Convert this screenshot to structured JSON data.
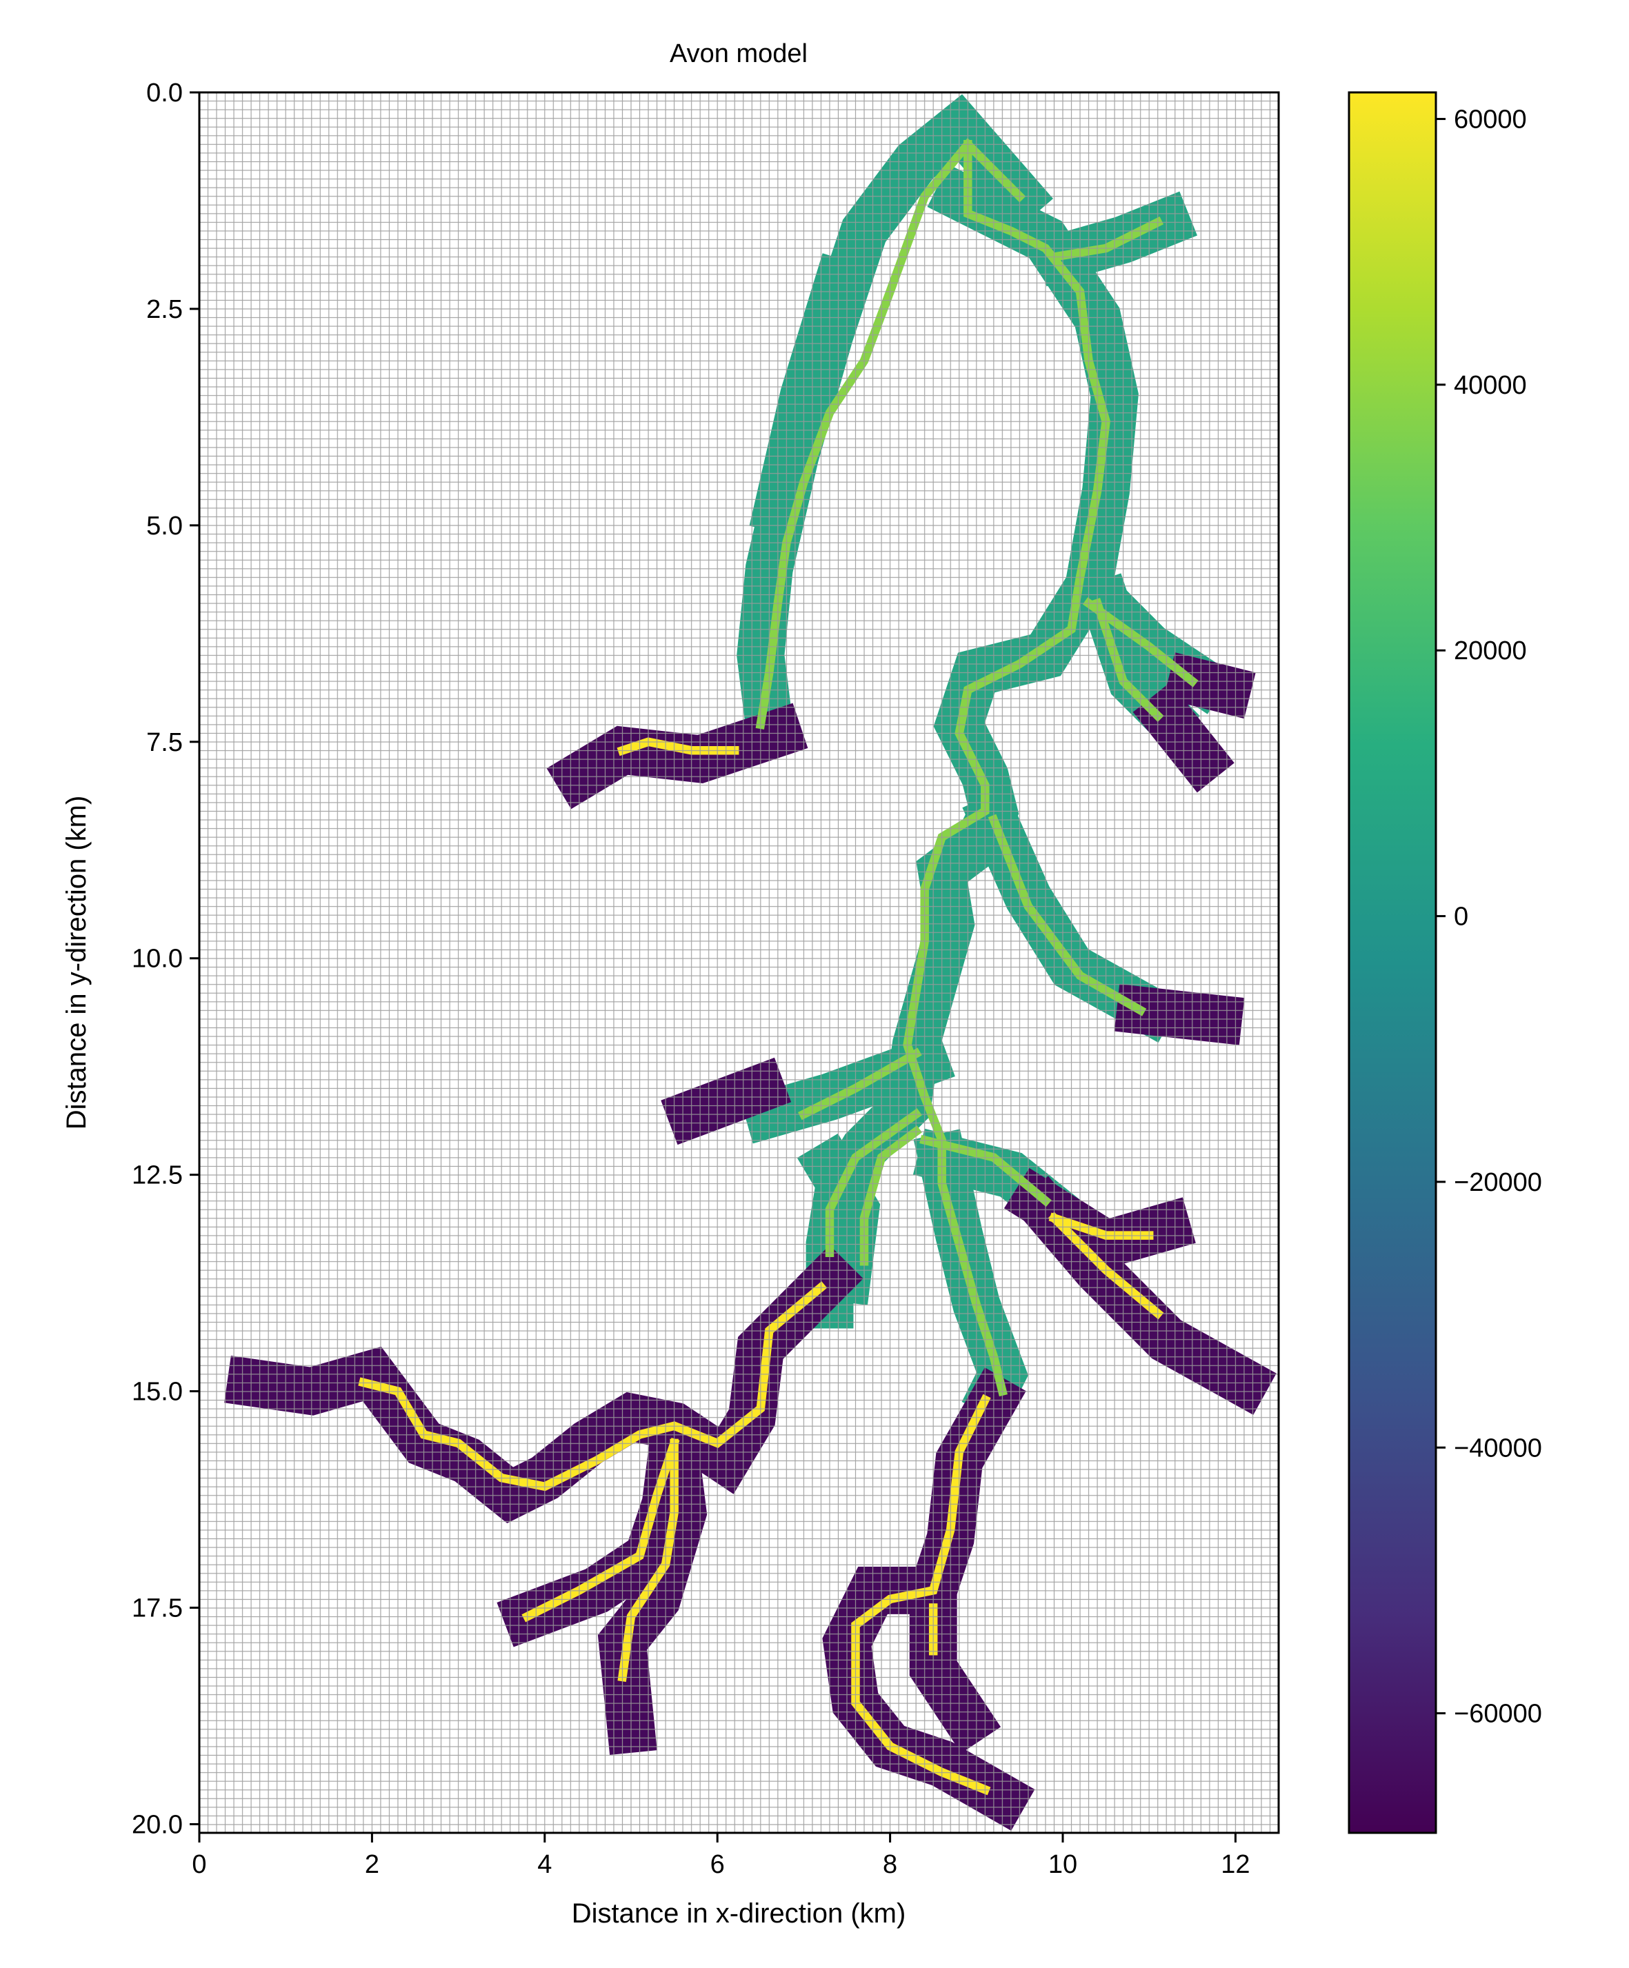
{
  "chart_data": {
    "type": "heatmap",
    "title": "Avon model",
    "xlabel": "Distance in x-direction (km)",
    "ylabel": "Distance in y-direction (km)",
    "xlim": [
      0,
      12.5
    ],
    "ylim": [
      20.1,
      0
    ],
    "x_ticks": [
      0,
      2,
      4,
      6,
      8,
      10,
      12
    ],
    "x_tick_labels": [
      "0",
      "2",
      "4",
      "6",
      "8",
      "10",
      "12"
    ],
    "y_ticks": [
      0,
      2.5,
      5,
      7.5,
      10,
      12.5,
      15,
      17.5,
      20
    ],
    "y_tick_labels": [
      "0.0",
      "2.5",
      "5.0",
      "7.5",
      "10.0",
      "12.5",
      "15.0",
      "17.5",
      "20.0"
    ],
    "grid": true,
    "grid_cell_km": 0.1,
    "colormap": "viridis",
    "colorbar": {
      "vmin": -69000,
      "vmax": 62000,
      "ticks": [
        60000,
        40000,
        20000,
        0,
        -20000,
        -40000,
        -60000
      ],
      "tick_labels": [
        "60000",
        "40000",
        "20000",
        "0",
        "−20000",
        "−40000",
        "−60000"
      ]
    },
    "regions": {
      "upper_floodplain": {
        "value": 8000,
        "width_km": 0.55,
        "branches": [
          [
            [
              9.5,
              1.2
            ],
            [
              8.8,
              0.4
            ],
            [
              8.3,
              0.8
            ],
            [
              7.7,
              1.6
            ],
            [
              7.3,
              2.8
            ],
            [
              6.9,
              4.2
            ],
            [
              6.6,
              5.5
            ],
            [
              6.5,
              6.5
            ],
            [
              6.6,
              7.3
            ]
          ],
          [
            [
              7.4,
              2.2
            ],
            [
              7.0,
              3.5
            ],
            [
              6.7,
              4.8
            ]
          ],
          [
            [
              8.8,
              1.2
            ],
            [
              9.8,
              1.7
            ],
            [
              10.4,
              2.6
            ],
            [
              10.6,
              3.5
            ],
            [
              10.5,
              4.6
            ],
            [
              10.3,
              5.7
            ],
            [
              9.8,
              6.5
            ],
            [
              9.0,
              6.7
            ],
            [
              8.8,
              7.3
            ],
            [
              9.1,
              7.9
            ],
            [
              9.2,
              8.3
            ],
            [
              9.0,
              8.7
            ],
            [
              8.6,
              9.0
            ],
            [
              8.7,
              9.6
            ],
            [
              8.5,
              10.3
            ],
            [
              8.3,
              11.0
            ],
            [
              8.2,
              11.7
            ],
            [
              7.7,
              12.2
            ],
            [
              7.4,
              12.7
            ],
            [
              7.3,
              13.3
            ],
            [
              7.3,
              14.0
            ]
          ],
          [
            [
              10.0,
              1.9
            ],
            [
              10.7,
              1.7
            ],
            [
              11.2,
              1.5
            ]
          ],
          [
            [
              10.4,
              5.8
            ],
            [
              11.0,
              6.4
            ],
            [
              11.6,
              6.8
            ]
          ],
          [
            [
              10.5,
              5.9
            ],
            [
              10.8,
              6.8
            ],
            [
              11.2,
              7.2
            ]
          ],
          [
            [
              9.2,
              8.4
            ],
            [
              9.6,
              9.3
            ],
            [
              10.1,
              10.1
            ],
            [
              11.0,
              10.6
            ]
          ],
          [
            [
              8.4,
              11.2
            ],
            [
              7.3,
              11.6
            ],
            [
              6.6,
              11.8
            ]
          ],
          [
            [
              8.6,
              12.3
            ],
            [
              8.8,
              13.2
            ],
            [
              9.0,
              14.0
            ],
            [
              9.3,
              14.8
            ],
            [
              9.2,
              15.0
            ]
          ],
          [
            [
              8.6,
              12.3
            ],
            [
              9.4,
              12.5
            ],
            [
              9.9,
              12.9
            ]
          ],
          [
            [
              7.3,
              12.4
            ],
            [
              7.6,
              12.9
            ],
            [
              7.5,
              13.7
            ]
          ]
        ]
      },
      "upper_channel": {
        "value": 38000,
        "width_km": 0.1,
        "branches": [
          [
            [
              9.5,
              1.2
            ],
            [
              8.9,
              0.6
            ],
            [
              8.4,
              1.2
            ],
            [
              8.0,
              2.3
            ],
            [
              7.7,
              3.1
            ],
            [
              7.3,
              3.7
            ],
            [
              7.0,
              4.5
            ],
            [
              6.8,
              5.2
            ],
            [
              6.7,
              5.9
            ],
            [
              6.6,
              6.7
            ],
            [
              6.5,
              7.3
            ]
          ],
          [
            [
              8.9,
              0.6
            ],
            [
              8.9,
              1.4
            ],
            [
              9.4,
              1.6
            ],
            [
              9.8,
              1.8
            ],
            [
              10.2,
              2.3
            ],
            [
              10.3,
              3.1
            ],
            [
              10.5,
              3.8
            ],
            [
              10.4,
              4.6
            ],
            [
              10.2,
              5.6
            ],
            [
              10.1,
              6.2
            ],
            [
              9.5,
              6.6
            ],
            [
              8.9,
              6.9
            ],
            [
              8.8,
              7.4
            ],
            [
              9.1,
              8.0
            ],
            [
              9.1,
              8.3
            ],
            [
              8.6,
              8.6
            ],
            [
              8.4,
              9.2
            ],
            [
              8.4,
              9.8
            ],
            [
              8.3,
              10.4
            ],
            [
              8.2,
              11.0
            ],
            [
              8.4,
              11.6
            ],
            [
              8.6,
              12.1
            ],
            [
              8.6,
              12.6
            ],
            [
              8.8,
              13.3
            ],
            [
              9.0,
              14.0
            ],
            [
              9.2,
              14.6
            ],
            [
              9.3,
              15.0
            ]
          ],
          [
            [
              9.9,
              1.9
            ],
            [
              10.5,
              1.8
            ],
            [
              11.1,
              1.5
            ]
          ],
          [
            [
              10.3,
              5.9
            ],
            [
              11.0,
              6.4
            ],
            [
              11.5,
              6.8
            ]
          ],
          [
            [
              10.4,
              5.9
            ],
            [
              10.7,
              6.8
            ],
            [
              11.1,
              7.2
            ]
          ],
          [
            [
              9.2,
              8.4
            ],
            [
              9.6,
              9.4
            ],
            [
              10.2,
              10.2
            ],
            [
              10.9,
              10.6
            ]
          ],
          [
            [
              8.3,
              11.1
            ],
            [
              7.6,
              11.5
            ],
            [
              7.0,
              11.8
            ]
          ],
          [
            [
              8.4,
              12.1
            ],
            [
              9.2,
              12.3
            ],
            [
              9.8,
              12.8
            ]
          ],
          [
            [
              8.3,
              12.0
            ],
            [
              7.9,
              12.3
            ],
            [
              7.7,
              13.0
            ],
            [
              7.7,
              13.5
            ]
          ],
          [
            [
              8.3,
              11.8
            ],
            [
              7.6,
              12.3
            ],
            [
              7.3,
              12.9
            ],
            [
              7.3,
              13.4
            ]
          ]
        ]
      },
      "lower_floodplain": {
        "value": -66000,
        "width_km": 0.55,
        "branches": [
          [
            [
              6.7,
              7.4
            ],
            [
              5.8,
              7.7
            ],
            [
              4.9,
              7.6
            ],
            [
              4.4,
              7.9
            ]
          ],
          [
            [
              6.5,
              11.5
            ],
            [
              5.7,
              11.8
            ]
          ],
          [
            [
              7.3,
              13.7
            ],
            [
              6.5,
              14.5
            ],
            [
              6.4,
              15.3
            ],
            [
              6.1,
              15.8
            ],
            [
              5.5,
              15.4
            ],
            [
              5.0,
              15.3
            ],
            [
              4.5,
              15.6
            ],
            [
              4.0,
              16.0
            ],
            [
              3.6,
              16.2
            ],
            [
              3.1,
              15.8
            ],
            [
              2.6,
              15.6
            ],
            [
              2.3,
              15.2
            ],
            [
              2.0,
              14.8
            ],
            [
              1.3,
              15.0
            ],
            [
              0.6,
              14.9
            ]
          ],
          [
            [
              5.5,
              15.5
            ],
            [
              5.4,
              16.3
            ],
            [
              5.2,
              16.9
            ],
            [
              4.6,
              17.3
            ],
            [
              3.8,
              17.6
            ]
          ],
          [
            [
              5.5,
              15.6
            ],
            [
              5.6,
              16.4
            ],
            [
              5.3,
              17.4
            ],
            [
              4.9,
              17.9
            ],
            [
              5.0,
              18.9
            ]
          ],
          [
            [
              9.2,
              15.1
            ],
            [
              8.8,
              15.8
            ],
            [
              8.7,
              16.7
            ],
            [
              8.5,
              17.3
            ],
            [
              7.8,
              17.3
            ],
            [
              7.5,
              17.9
            ],
            [
              7.6,
              18.6
            ],
            [
              8.0,
              19.1
            ],
            [
              8.6,
              19.3
            ],
            [
              9.3,
              19.7
            ]
          ],
          [
            [
              8.5,
              17.4
            ],
            [
              8.5,
              18.2
            ],
            [
              8.9,
              18.8
            ]
          ],
          [
            [
              9.7,
              12.8
            ],
            [
              10.5,
              13.3
            ],
            [
              11.2,
              13.1
            ]
          ],
          [
            [
              9.8,
              12.9
            ],
            [
              10.4,
              13.6
            ],
            [
              11.2,
              14.4
            ],
            [
              12.1,
              14.9
            ]
          ],
          [
            [
              10.9,
              10.6
            ],
            [
              11.8,
              10.7
            ]
          ],
          [
            [
              11.2,
              7.2
            ],
            [
              11.6,
              7.7
            ]
          ],
          [
            [
              11.5,
              6.8
            ],
            [
              11.9,
              6.9
            ]
          ]
        ]
      },
      "lower_channel": {
        "value": 62000,
        "width_km": 0.1,
        "branches": [
          [
            [
              6.2,
              7.6
            ],
            [
              5.7,
              7.6
            ],
            [
              5.2,
              7.5
            ],
            [
              4.9,
              7.6
            ]
          ],
          [
            [
              7.2,
              13.8
            ],
            [
              6.6,
              14.3
            ],
            [
              6.5,
              15.2
            ],
            [
              6.0,
              15.6
            ],
            [
              5.5,
              15.4
            ],
            [
              5.1,
              15.5
            ],
            [
              4.6,
              15.8
            ],
            [
              4.0,
              16.1
            ],
            [
              3.5,
              16.0
            ],
            [
              3.0,
              15.6
            ],
            [
              2.6,
              15.5
            ],
            [
              2.3,
              15.0
            ],
            [
              1.9,
              14.9
            ]
          ],
          [
            [
              5.5,
              15.6
            ],
            [
              5.3,
              16.2
            ],
            [
              5.1,
              16.9
            ],
            [
              4.4,
              17.3
            ],
            [
              3.8,
              17.6
            ]
          ],
          [
            [
              5.5,
              15.6
            ],
            [
              5.5,
              16.4
            ],
            [
              5.4,
              17.0
            ],
            [
              5.0,
              17.6
            ],
            [
              4.9,
              18.3
            ]
          ],
          [
            [
              9.1,
              15.1
            ],
            [
              8.8,
              15.7
            ],
            [
              8.7,
              16.6
            ],
            [
              8.5,
              17.3
            ],
            [
              8.0,
              17.4
            ],
            [
              7.6,
              17.7
            ],
            [
              7.6,
              18.6
            ],
            [
              8.0,
              19.1
            ],
            [
              8.6,
              19.4
            ],
            [
              9.1,
              19.6
            ]
          ],
          [
            [
              8.5,
              17.5
            ],
            [
              8.5,
              18.0
            ]
          ],
          [
            [
              9.9,
              13.0
            ],
            [
              10.5,
              13.2
            ],
            [
              11.0,
              13.2
            ]
          ],
          [
            [
              9.9,
              13.0
            ],
            [
              10.5,
              13.6
            ],
            [
              11.1,
              14.1
            ]
          ]
        ]
      }
    }
  }
}
